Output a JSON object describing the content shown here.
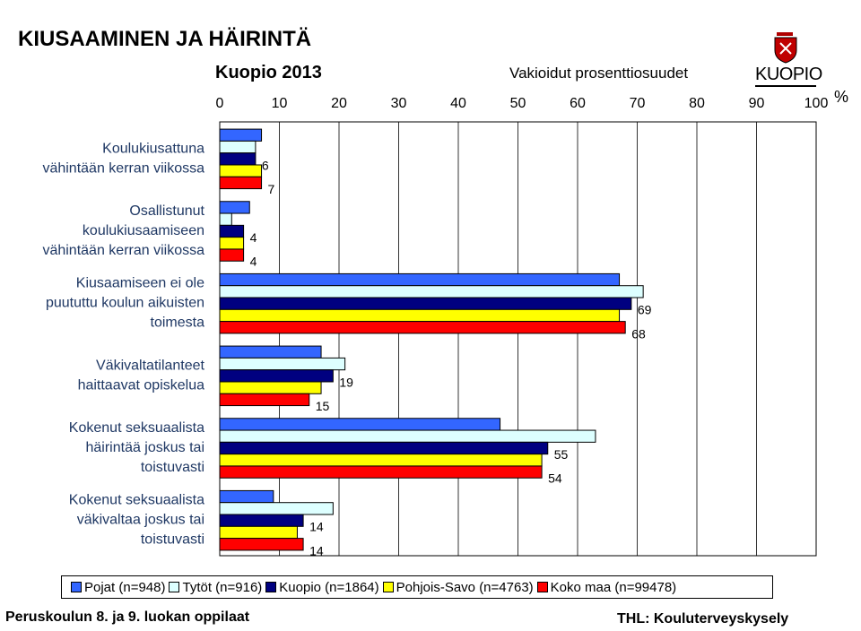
{
  "header": {
    "title": "KIUSAAMINEN JA HÄIRINTÄ",
    "subtitle": "Kuopio 2013",
    "note": "Vakioidut prosenttiosuudet",
    "logo_text": "KUOPIO"
  },
  "footer": {
    "left": "Peruskoulun 8. ja 9. luokan oppilaat",
    "right": "THL: Kouluterveyskysely"
  },
  "chart_data": {
    "type": "bar",
    "orientation": "horizontal",
    "unit": "%",
    "xlim": [
      0,
      100
    ],
    "ticks": [
      "0",
      "10",
      "20",
      "30",
      "40",
      "50",
      "60",
      "70",
      "80",
      "90",
      "100"
    ],
    "grid": true,
    "categories": [
      [
        "Koulukiusattuna",
        "vähintään kerran viikossa"
      ],
      [
        "Osallistunut",
        "koulukiusaamiseen",
        "vähintään kerran viikossa"
      ],
      [
        "Kiusaamiseen ei ole",
        "puututtu koulun aikuisten",
        "toimesta"
      ],
      [
        "Väkivaltatilanteet",
        "haittaavat opiskelua"
      ],
      [
        "Kokenut seksuaalista",
        "häirintää joskus tai",
        "toistuvasti"
      ],
      [
        "Kokenut seksuaalista",
        "väkivaltaa joskus tai",
        "toistuvasti"
      ]
    ],
    "series": [
      {
        "name": "Pojat (n=948)",
        "color": "#3366ff",
        "values": [
          7,
          5,
          67,
          17,
          47,
          9
        ]
      },
      {
        "name": "Tytöt (n=916)",
        "color": "#ddffff",
        "values": [
          6,
          2,
          71,
          21,
          63,
          19
        ]
      },
      {
        "name": "Kuopio (n=1864)",
        "color": "#000080",
        "values": [
          6,
          4,
          69,
          19,
          55,
          14
        ]
      },
      {
        "name": "Pohjois-Savo (n=4763)",
        "color": "#ffff00",
        "values": [
          7,
          4,
          67,
          17,
          54,
          13
        ]
      },
      {
        "name": "Koko maa (n=99478)",
        "color": "#ff0000",
        "values": [
          7,
          4,
          68,
          15,
          54,
          14
        ]
      }
    ],
    "labels": [
      {
        "category": 0,
        "series": 2,
        "text": "6"
      },
      {
        "category": 0,
        "series": 4,
        "text": "7"
      },
      {
        "category": 1,
        "series": 2,
        "text": "4"
      },
      {
        "category": 1,
        "series": 4,
        "text": "4"
      },
      {
        "category": 2,
        "series": 2,
        "text": "69"
      },
      {
        "category": 2,
        "series": 4,
        "text": "68"
      },
      {
        "category": 3,
        "series": 2,
        "text": "19"
      },
      {
        "category": 3,
        "series": 4,
        "text": "15"
      },
      {
        "category": 4,
        "series": 2,
        "text": "55"
      },
      {
        "category": 4,
        "series": 4,
        "text": "54"
      },
      {
        "category": 5,
        "series": 2,
        "text": "14"
      },
      {
        "category": 5,
        "series": 4,
        "text": "14"
      }
    ]
  }
}
